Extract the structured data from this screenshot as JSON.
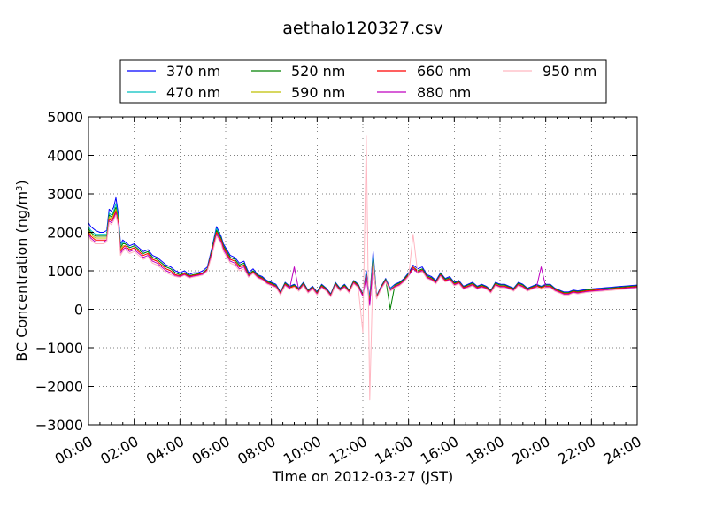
{
  "chart_data": {
    "type": "line",
    "title": "aethalo120327.csv",
    "xlabel": "Time on 2012-03-27 (JST)",
    "ylabel": "BC Concentration (ng/m³)",
    "ylabel_main": "BC Concentration (ng/m",
    "ylabel_sup": "3",
    "ylabel_end": ")",
    "x_unit": "hour",
    "xlim": [
      0,
      24
    ],
    "ylim": [
      -3000,
      5000
    ],
    "grid": true,
    "grid_style": "dotted",
    "legend_position": "top-center",
    "x_tick_values": [
      0,
      2,
      4,
      6,
      8,
      10,
      12,
      14,
      16,
      18,
      20,
      22,
      24
    ],
    "x_tick_labels": [
      "00:00",
      "02:00",
      "04:00",
      "06:00",
      "08:00",
      "10:00",
      "12:00",
      "14:00",
      "16:00",
      "18:00",
      "20:00",
      "22:00",
      "24:00"
    ],
    "y_tick_values": [
      -3000,
      -2000,
      -1000,
      0,
      1000,
      2000,
      3000,
      4000,
      5000
    ],
    "y_tick_labels": [
      "−3000",
      "−2000",
      "−1000",
      "0",
      "1000",
      "2000",
      "3000",
      "4000",
      "5000"
    ],
    "x": [
      0.0,
      0.1,
      0.2,
      0.3,
      0.5,
      0.65,
      0.8,
      0.9,
      1.0,
      1.1,
      1.2,
      1.3,
      1.4,
      1.5,
      1.6,
      1.8,
      2.0,
      2.2,
      2.4,
      2.6,
      2.8,
      3.0,
      3.2,
      3.4,
      3.6,
      3.8,
      4.0,
      4.2,
      4.4,
      4.6,
      4.8,
      5.0,
      5.2,
      5.4,
      5.6,
      5.8,
      5.9,
      6.0,
      6.2,
      6.4,
      6.6,
      6.8,
      7.0,
      7.2,
      7.4,
      7.6,
      7.8,
      8.0,
      8.2,
      8.4,
      8.6,
      8.8,
      9.0,
      9.2,
      9.4,
      9.6,
      9.8,
      10.0,
      10.2,
      10.4,
      10.6,
      10.8,
      11.0,
      11.2,
      11.4,
      11.6,
      11.8,
      12.0,
      12.15,
      12.3,
      12.45,
      12.6,
      12.8,
      13.0,
      13.2,
      13.4,
      13.6,
      13.8,
      14.0,
      14.2,
      14.4,
      14.6,
      14.8,
      15.0,
      15.2,
      15.4,
      15.6,
      15.8,
      16.0,
      16.2,
      16.4,
      16.6,
      16.8,
      17.0,
      17.2,
      17.4,
      17.6,
      17.8,
      18.0,
      18.2,
      18.4,
      18.6,
      18.8,
      19.0,
      19.2,
      19.4,
      19.6,
      19.8,
      20.0,
      20.2,
      20.4,
      20.6,
      20.8,
      21.0,
      21.2,
      21.4,
      21.6,
      21.8,
      22.0,
      22.2,
      22.4,
      22.6,
      22.8,
      23.0,
      23.2,
      23.4,
      23.6,
      23.8,
      24.0
    ],
    "series": [
      {
        "name": "370 nm",
        "color": "#0000ff",
        "values": [
          2250,
          2150,
          2100,
          2050,
          2000,
          2000,
          2050,
          2600,
          2550,
          2650,
          2900,
          2500,
          1700,
          1800,
          1750,
          1650,
          1700,
          1600,
          1500,
          1550,
          1400,
          1350,
          1250,
          1150,
          1100,
          1000,
          950,
          1000,
          900,
          950,
          950,
          1000,
          1100,
          1600,
          2150,
          1900,
          1700,
          1600,
          1400,
          1350,
          1200,
          1250,
          950,
          1050,
          900,
          850,
          750,
          700,
          650,
          450,
          700,
          600,
          650,
          550,
          700,
          500,
          600,
          450,
          650,
          550,
          400,
          700,
          550,
          650,
          500,
          750,
          650,
          400,
          1000,
          300,
          1500,
          350,
          600,
          800,
          550,
          650,
          700,
          800,
          950,
          1150,
          1050,
          1100,
          900,
          850,
          750,
          950,
          800,
          850,
          700,
          750,
          600,
          650,
          700,
          600,
          650,
          600,
          500,
          700,
          650,
          650,
          600,
          550,
          700,
          650,
          550,
          600,
          650,
          600,
          650,
          650,
          550,
          500,
          450,
          450,
          500,
          480,
          500,
          520,
          530,
          540,
          550,
          560,
          570,
          580,
          590,
          600,
          610,
          620,
          630
        ]
      },
      {
        "name": "470 nm",
        "color": "#00bfbf",
        "values": [
          2150,
          2050,
          2000,
          1950,
          1950,
          1950,
          1950,
          2500,
          2450,
          2550,
          2750,
          2400,
          1650,
          1750,
          1700,
          1600,
          1650,
          1550,
          1450,
          1500,
          1350,
          1300,
          1200,
          1100,
          1050,
          950,
          900,
          950,
          870,
          900,
          920,
          950,
          1050,
          1550,
          2100,
          1850,
          1650,
          1550,
          1350,
          1300,
          1150,
          1200,
          900,
          1000,
          880,
          820,
          720,
          680,
          620,
          430,
          680,
          580,
          630,
          530,
          680,
          480,
          580,
          430,
          630,
          530,
          380,
          680,
          530,
          630,
          480,
          730,
          630,
          380,
          950,
          250,
          1400,
          330,
          580,
          780,
          530,
          630,
          680,
          780,
          920,
          1100,
          1000,
          1050,
          870,
          820,
          720,
          920,
          780,
          820,
          680,
          720,
          580,
          630,
          680,
          580,
          630,
          580,
          480,
          680,
          630,
          630,
          580,
          530,
          680,
          630,
          530,
          580,
          630,
          580,
          630,
          630,
          530,
          480,
          430,
          430,
          480,
          460,
          480,
          500,
          510,
          520,
          530,
          540,
          550,
          560,
          570,
          580,
          590,
          600,
          610
        ]
      },
      {
        "name": "520 nm",
        "color": "#008000",
        "values": [
          2100,
          2000,
          1950,
          1900,
          1900,
          1900,
          1900,
          2450,
          2400,
          2500,
          2650,
          2350,
          1600,
          1700,
          1700,
          1600,
          1650,
          1550,
          1450,
          1500,
          1350,
          1300,
          1200,
          1100,
          1050,
          950,
          900,
          950,
          870,
          900,
          920,
          950,
          1050,
          1550,
          2050,
          1850,
          1650,
          1550,
          1350,
          1300,
          1150,
          1200,
          900,
          1000,
          880,
          820,
          720,
          680,
          620,
          430,
          680,
          580,
          630,
          530,
          680,
          480,
          580,
          430,
          630,
          530,
          380,
          680,
          530,
          630,
          480,
          730,
          630,
          380,
          900,
          200,
          1300,
          330,
          580,
          780,
          0,
          630,
          680,
          780,
          920,
          1100,
          1000,
          1050,
          870,
          820,
          720,
          920,
          780,
          820,
          680,
          720,
          580,
          630,
          680,
          580,
          630,
          580,
          480,
          680,
          630,
          630,
          580,
          530,
          680,
          630,
          530,
          580,
          630,
          580,
          630,
          630,
          530,
          480,
          430,
          430,
          480,
          460,
          480,
          500,
          510,
          520,
          530,
          540,
          550,
          560,
          570,
          580,
          590,
          600,
          610
        ]
      },
      {
        "name": "590 nm",
        "color": "#bfbf00",
        "values": [
          2050,
          1950,
          1900,
          1850,
          1850,
          1850,
          1850,
          2400,
          2350,
          2450,
          2600,
          2300,
          1550,
          1650,
          1650,
          1550,
          1600,
          1500,
          1400,
          1450,
          1300,
          1250,
          1150,
          1050,
          1000,
          900,
          870,
          920,
          850,
          880,
          900,
          930,
          1030,
          1500,
          2000,
          1800,
          1600,
          1500,
          1300,
          1250,
          1100,
          1150,
          870,
          970,
          850,
          800,
          700,
          650,
          600,
          410,
          650,
          560,
          600,
          510,
          650,
          460,
          560,
          410,
          600,
          510,
          360,
          650,
          510,
          600,
          460,
          700,
          600,
          360,
          880,
          180,
          1250,
          310,
          560,
          750,
          510,
          600,
          650,
          750,
          890,
          1060,
          970,
          1020,
          840,
          790,
          700,
          890,
          750,
          790,
          650,
          700,
          560,
          600,
          650,
          560,
          600,
          560,
          460,
          650,
          600,
          600,
          560,
          510,
          650,
          600,
          510,
          560,
          600,
          560,
          600,
          600,
          510,
          460,
          410,
          410,
          460,
          440,
          460,
          480,
          490,
          500,
          510,
          520,
          530,
          540,
          550,
          560,
          570,
          580,
          590
        ]
      },
      {
        "name": "660 nm",
        "color": "#ff0000",
        "values": [
          2000,
          1900,
          1850,
          1800,
          1800,
          1800,
          1800,
          2350,
          2300,
          2400,
          2550,
          2250,
          1500,
          1600,
          1650,
          1550,
          1600,
          1500,
          1400,
          1450,
          1300,
          1250,
          1150,
          1050,
          1000,
          900,
          870,
          920,
          850,
          880,
          900,
          930,
          1030,
          1500,
          2000,
          1800,
          1600,
          1500,
          1300,
          1250,
          1100,
          1150,
          870,
          970,
          850,
          800,
          700,
          650,
          600,
          410,
          650,
          560,
          600,
          510,
          650,
          460,
          560,
          410,
          600,
          510,
          360,
          650,
          510,
          600,
          460,
          700,
          600,
          360,
          880,
          150,
          1200,
          310,
          560,
          750,
          510,
          600,
          650,
          750,
          890,
          1100,
          970,
          1020,
          840,
          790,
          700,
          890,
          750,
          790,
          650,
          700,
          560,
          600,
          650,
          560,
          600,
          560,
          460,
          650,
          600,
          600,
          560,
          510,
          650,
          600,
          510,
          560,
          600,
          560,
          600,
          600,
          510,
          460,
          410,
          410,
          460,
          440,
          460,
          480,
          490,
          500,
          510,
          520,
          530,
          540,
          550,
          560,
          570,
          580,
          590
        ]
      },
      {
        "name": "880 nm",
        "color": "#bf00bf",
        "values": [
          1950,
          1850,
          1800,
          1750,
          1750,
          1750,
          1800,
          2300,
          2250,
          2350,
          2500,
          2200,
          1450,
          1550,
          1600,
          1500,
          1550,
          1450,
          1350,
          1400,
          1250,
          1200,
          1100,
          1000,
          950,
          870,
          850,
          900,
          830,
          860,
          880,
          910,
          1010,
          1450,
          1950,
          1750,
          1550,
          1450,
          1250,
          1200,
          1050,
          1100,
          850,
          950,
          830,
          780,
          680,
          630,
          580,
          390,
          630,
          540,
          1100,
          490,
          630,
          440,
          540,
          390,
          580,
          490,
          340,
          630,
          490,
          580,
          440,
          680,
          580,
          340,
          850,
          100,
          1150,
          290,
          540,
          730,
          490,
          580,
          630,
          730,
          870,
          1050,
          950,
          1000,
          820,
          770,
          680,
          870,
          730,
          770,
          630,
          680,
          540,
          580,
          630,
          540,
          580,
          540,
          440,
          630,
          580,
          580,
          540,
          490,
          630,
          580,
          490,
          540,
          580,
          1100,
          580,
          580,
          490,
          440,
          390,
          390,
          440,
          420,
          440,
          460,
          470,
          480,
          490,
          500,
          510,
          520,
          530,
          540,
          550,
          560,
          570
        ]
      },
      {
        "name": "950 nm",
        "color": "#ffb6c1",
        "values": [
          1900,
          1800,
          1750,
          1700,
          1700,
          1700,
          1750,
          2250,
          2200,
          2300,
          2450,
          2150,
          1400,
          1500,
          1550,
          1450,
          1500,
          1400,
          1300,
          1350,
          1200,
          1150,
          1050,
          950,
          900,
          850,
          830,
          880,
          810,
          840,
          860,
          890,
          990,
          1400,
          1900,
          1700,
          1500,
          1400,
          1200,
          1150,
          1000,
          1050,
          830,
          930,
          810,
          760,
          660,
          610,
          560,
          370,
          610,
          520,
          580,
          470,
          610,
          420,
          520,
          370,
          560,
          470,
          320,
          610,
          470,
          560,
          420,
          660,
          560,
          -600,
          4500,
          -2350,
          1200,
          270,
          520,
          710,
          470,
          560,
          610,
          710,
          850,
          1950,
          930,
          980,
          800,
          750,
          660,
          850,
          710,
          750,
          610,
          660,
          520,
          560,
          610,
          520,
          560,
          520,
          420,
          610,
          560,
          560,
          520,
          470,
          610,
          560,
          470,
          520,
          560,
          520,
          560,
          560,
          470,
          420,
          370,
          370,
          420,
          400,
          420,
          440,
          450,
          460,
          470,
          480,
          490,
          500,
          510,
          520,
          530,
          540,
          550
        ]
      }
    ]
  }
}
